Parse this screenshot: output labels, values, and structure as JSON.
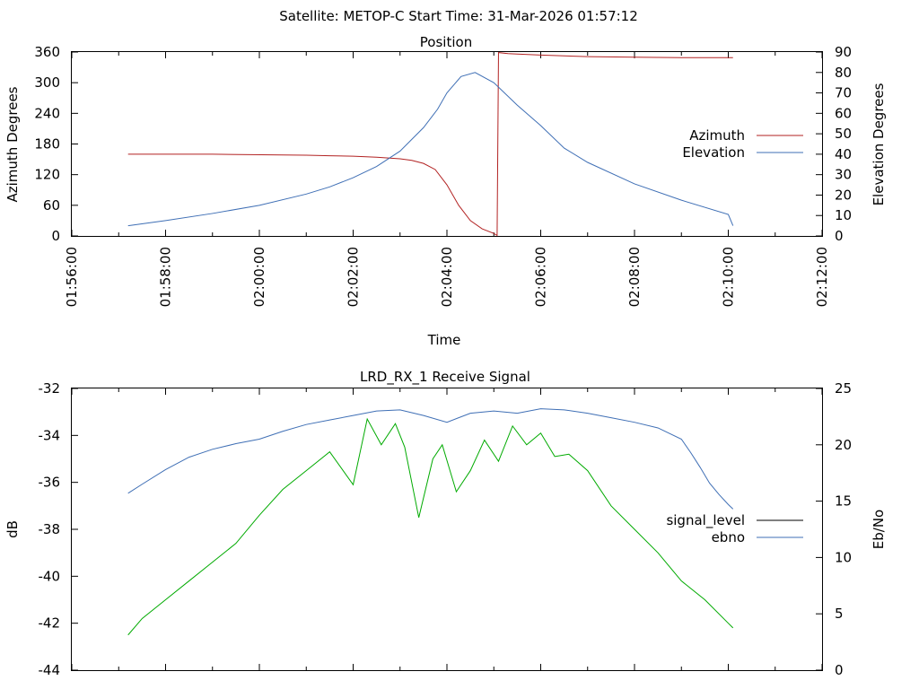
{
  "figure": {
    "suptitle": "Satellite: METOP-C    Start Time: 31-Mar-2026 01:57:12"
  },
  "chart_data": [
    {
      "type": "line",
      "title": "Position",
      "xlabel": "Time",
      "ylabel": "Azimuth Degrees",
      "y2label": "Elevation Degrees",
      "x_ticks": [
        "01:56:00",
        "01:58:00",
        "02:00:00",
        "02:02:00",
        "02:04:00",
        "02:06:00",
        "02:08:00",
        "02:10:00",
        "02:12:00"
      ],
      "x_tick_minutes": [
        0,
        2,
        4,
        6,
        8,
        10,
        12,
        14,
        16
      ],
      "x_minor_tick_minutes": [
        1,
        3,
        5,
        7,
        9,
        11,
        13,
        15
      ],
      "xlim_minutes": [
        0,
        16
      ],
      "ylim": [
        0,
        360
      ],
      "y_ticks": [
        "0",
        "60",
        "120",
        "180",
        "240",
        "300",
        "360"
      ],
      "y2lim": [
        0,
        90
      ],
      "y2_ticks": [
        "0",
        "10",
        "20",
        "30",
        "40",
        "50",
        "60",
        "70",
        "80",
        "90"
      ],
      "legend_position": "right",
      "series": [
        {
          "name": "Azimuth",
          "axis": "left",
          "color": "#b22222",
          "x": [
            1.2,
            3,
            5,
            5.5,
            6,
            6.5,
            7,
            7.25,
            7.5,
            7.75,
            8,
            8.25,
            8.5,
            8.75,
            9.0,
            9.05,
            9.07,
            9.1,
            9.3,
            9.5,
            10,
            11,
            12,
            13,
            14,
            14.1
          ],
          "y": [
            160,
            160,
            158,
            157,
            156,
            154,
            151,
            148,
            142,
            130,
            100,
            60,
            30,
            14,
            5,
            2,
            1,
            359,
            357,
            356,
            354,
            351,
            350,
            349,
            349,
            349
          ]
        },
        {
          "name": "Elevation",
          "axis": "right",
          "color": "#3f6fb5",
          "x": [
            1.2,
            2,
            3,
            4,
            5,
            5.5,
            6,
            6.5,
            7,
            7.5,
            7.8,
            8,
            8.3,
            8.6,
            9,
            9.5,
            10,
            10.5,
            11,
            12,
            13,
            14,
            14.1
          ],
          "y": [
            5,
            7.5,
            11,
            15,
            20.5,
            24,
            28.5,
            34,
            41.5,
            53,
            62,
            70,
            78,
            80,
            75,
            64,
            54,
            43,
            36,
            25.5,
            17.5,
            10.5,
            5
          ]
        }
      ]
    },
    {
      "type": "line",
      "title": "LRD_RX_1 Receive Signal",
      "xlabel": "",
      "ylabel": "dB",
      "y2label": "Eb/No",
      "x_ticks": [],
      "x_tick_minutes": [
        0,
        2,
        4,
        6,
        8,
        10,
        12,
        14,
        16
      ],
      "x_minor_tick_minutes": [
        1,
        3,
        5,
        7,
        9,
        11,
        13,
        15
      ],
      "xlim_minutes": [
        0,
        16
      ],
      "ylim": [
        -44,
        -32
      ],
      "y_ticks": [
        "-32",
        "-34",
        "-36",
        "-38",
        "-40",
        "-42",
        "-44"
      ],
      "y2lim": [
        0,
        25
      ],
      "y2_ticks": [
        "0",
        "5",
        "10",
        "15",
        "20",
        "25"
      ],
      "legend_position": "right",
      "series": [
        {
          "name": "signal_level",
          "axis": "left",
          "color": "#000000",
          "x": [],
          "y": []
        },
        {
          "name": "ebno",
          "axis": "right",
          "color": "#3f6fb5",
          "x": [
            1.2,
            1.5,
            2,
            2.5,
            3,
            3.5,
            4,
            4.5,
            5,
            5.5,
            6,
            6.5,
            7,
            7.5,
            8,
            8.5,
            9,
            9.5,
            10,
            10.5,
            11,
            11.5,
            12,
            12.5,
            13,
            13.2,
            13.4,
            13.6,
            13.8,
            14,
            14.1
          ],
          "y": [
            15.7,
            16.5,
            17.8,
            18.9,
            19.6,
            20.1,
            20.5,
            21.2,
            21.8,
            22.2,
            22.6,
            23,
            23.1,
            22.6,
            22,
            22.8,
            23,
            22.8,
            23.2,
            23.1,
            22.8,
            22.4,
            22,
            21.5,
            20.5,
            19.3,
            18,
            16.6,
            15.6,
            14.7,
            14.3
          ]
        },
        {
          "name": "",
          "axis": "left",
          "color": "#00aa00",
          "x": [
            1.2,
            1.5,
            2,
            2.5,
            3,
            3.5,
            4,
            4.5,
            5,
            5.5,
            6,
            6.3,
            6.6,
            6.9,
            7.1,
            7.4,
            7.7,
            7.9,
            8.2,
            8.5,
            8.8,
            9.1,
            9.4,
            9.7,
            10,
            10.3,
            10.6,
            11,
            11.5,
            12,
            12.5,
            13,
            13.5,
            14,
            14.1
          ],
          "y": [
            -42.5,
            -41.8,
            -41,
            -40.2,
            -39.4,
            -38.6,
            -37.4,
            -36.3,
            -35.5,
            -34.7,
            -36.1,
            -33.3,
            -34.4,
            -33.5,
            -34.5,
            -37.5,
            -35,
            -34.4,
            -36.4,
            -35.5,
            -34.2,
            -35.1,
            -33.6,
            -34.4,
            -33.9,
            -34.9,
            -34.8,
            -35.5,
            -37,
            -38,
            -39,
            -40.2,
            -41,
            -42,
            -42.2
          ]
        }
      ]
    }
  ]
}
